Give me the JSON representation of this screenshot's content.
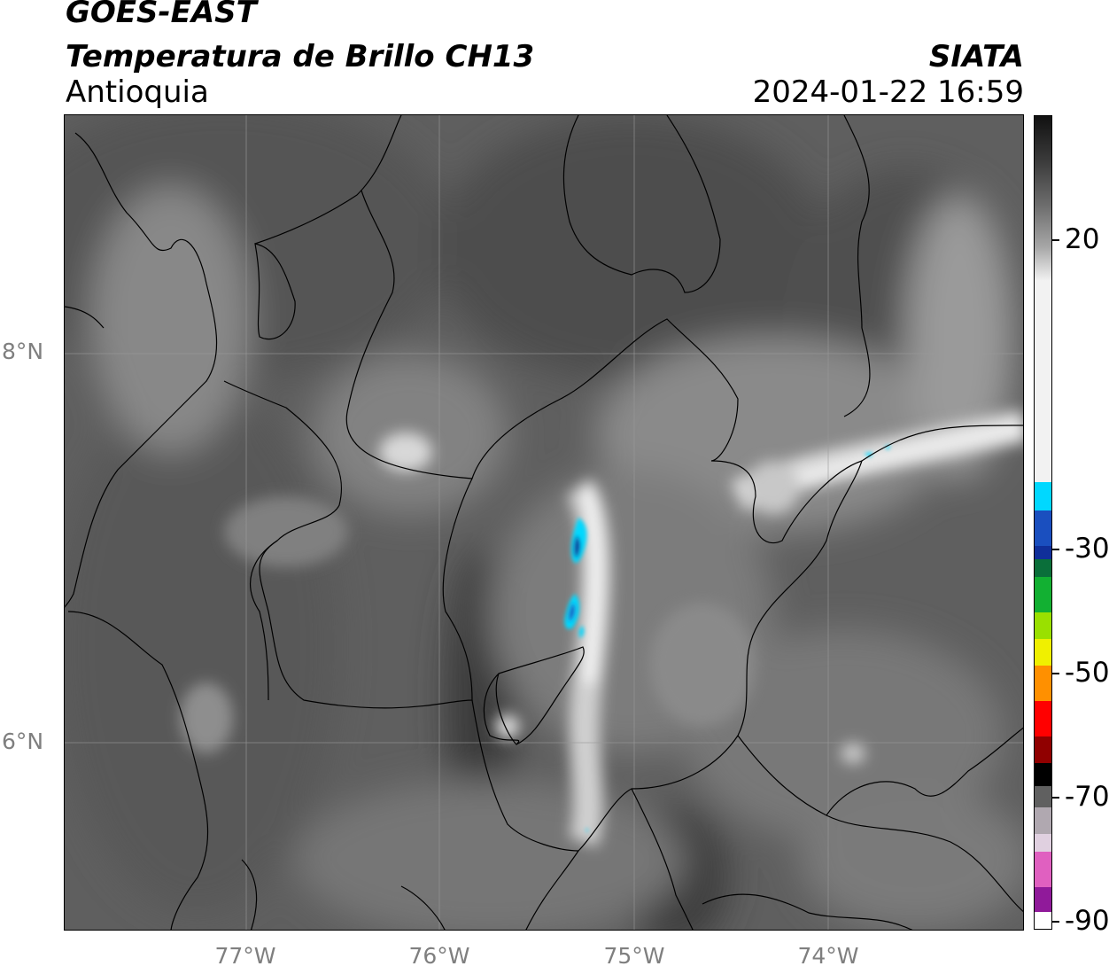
{
  "header": {
    "satellite": "GOES-EAST",
    "product": "Temperatura de Brillo CH13",
    "region": "Antioquia",
    "organization": "SIATA",
    "datetime": "2024-01-22 16:59"
  },
  "map": {
    "lat_labels": [
      "8°N",
      "6°N"
    ],
    "lon_labels": [
      "77°W",
      "76°W",
      "75°W",
      "74°W"
    ],
    "grid": true
  },
  "colorbar": {
    "ticks": [
      "20",
      "-30",
      "-50",
      "-70",
      "-90"
    ],
    "colors": {
      "gray_dark": "#1a1a1a",
      "gray_light": "#f2f2f2",
      "cyan": "#00d8ff",
      "blue": "#102f9a",
      "green": "#12b032",
      "yellow": "#f0f000",
      "orange": "#ff9000",
      "red": "#ff0000",
      "black": "#000000",
      "pink": "#e060c0",
      "purple": "#901a9a"
    }
  }
}
